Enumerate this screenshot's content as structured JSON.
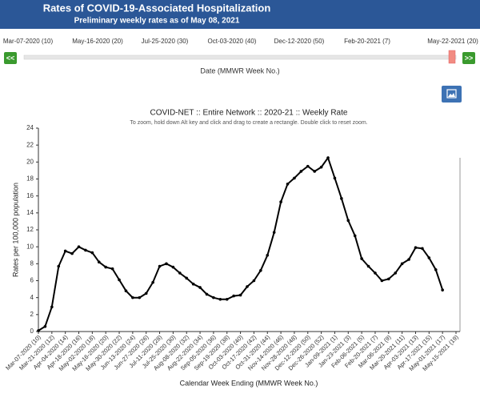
{
  "header": {
    "title": "Rates of COVID-19-Associated Hospitalization",
    "subtitle": "Preliminary weekly rates as of May 08, 2021"
  },
  "slider": {
    "labels": [
      "Mar-07-2020 (10)",
      "May-16-2020 (20)",
      "Jul-25-2020 (30)",
      "Oct-03-2020 (40)",
      "Dec-12-2020 (50)",
      "Feb-20-2021 (7)",
      "May-22-2021 (20)"
    ],
    "prev": "<<",
    "next": ">>",
    "axis_label": "Date (MMWR Week No.)"
  },
  "chart_data": {
    "type": "line",
    "title": "COVID-NET :: Entire Network :: 2020-21 :: Weekly Rate",
    "subtitle": "To zoom, hold down Alt key and click and drag to create a rectangle. Double click to reset zoom.",
    "xlabel": "Calendar Week Ending (MMWR Week No.)",
    "ylabel": "Rates per 100,000 population",
    "categories": [
      "Mar-07-2020 (10)",
      null,
      "Mar-21-2020 (12)",
      null,
      "Apr-04-2020 (14)",
      null,
      "Apr-18-2020 (16)",
      null,
      "May-02-2020 (18)",
      null,
      "May-16-2020 (20)",
      null,
      "May-30-2020 (22)",
      null,
      "Jun-13-2020 (24)",
      null,
      "Jun-27-2020 (26)",
      null,
      "Jul-11-2020 (28)",
      null,
      "Jul-25-2020 (30)",
      null,
      "Aug-08-2020 (32)",
      null,
      "Aug-22-2020 (34)",
      null,
      "Sep-05-2020 (36)",
      null,
      "Sep-19-2020 (38)",
      null,
      "Oct-03-2020 (40)",
      null,
      "Oct-17-2020 (42)",
      null,
      "Oct-31-2020 (44)",
      null,
      "Nov-14-2020 (46)",
      null,
      "Nov-28-2020 (48)",
      null,
      "Dec-12-2020 (50)",
      null,
      "Dec-26-2020 (52)",
      null,
      "Jan-09-2021 (1)",
      null,
      "Jan-23-2021 (3)",
      null,
      "Feb-06-2021 (5)",
      null,
      "Feb-20-2021 (7)",
      null,
      "Mar-06-2021 (9)",
      null,
      "Mar-20-2021 (11)",
      null,
      "Apr-03-2021 (13)",
      null,
      "Apr-17-2021 (15)",
      null,
      "May-01-2021 (17)",
      null,
      "May-15-2021 (19)"
    ],
    "values": [
      0.1,
      0.6,
      2.9,
      7.7,
      9.5,
      9.2,
      10.0,
      9.6,
      9.3,
      8.2,
      7.6,
      7.4,
      6.1,
      4.8,
      4.0,
      4.0,
      4.5,
      5.8,
      7.7,
      8.0,
      7.6,
      6.9,
      6.3,
      5.6,
      5.2,
      4.4,
      4.0,
      3.8,
      3.8,
      4.2,
      4.3,
      5.3,
      6.0,
      7.2,
      9.0,
      11.7,
      15.3,
      17.4,
      18.1,
      18.9,
      19.5,
      18.9,
      19.4,
      20.5,
      18.1,
      15.7,
      13.1,
      11.3,
      8.6,
      7.7,
      6.9,
      6.0,
      6.2,
      6.9,
      8.0,
      8.5,
      9.9,
      9.8,
      8.7,
      7.3,
      4.9,
      null,
      null
    ],
    "color": "#000000",
    "ylim": [
      0,
      24
    ],
    "yticks": [
      0,
      2,
      4,
      6,
      8,
      10,
      12,
      14,
      16,
      18,
      20,
      22,
      24
    ],
    "grid": false
  }
}
